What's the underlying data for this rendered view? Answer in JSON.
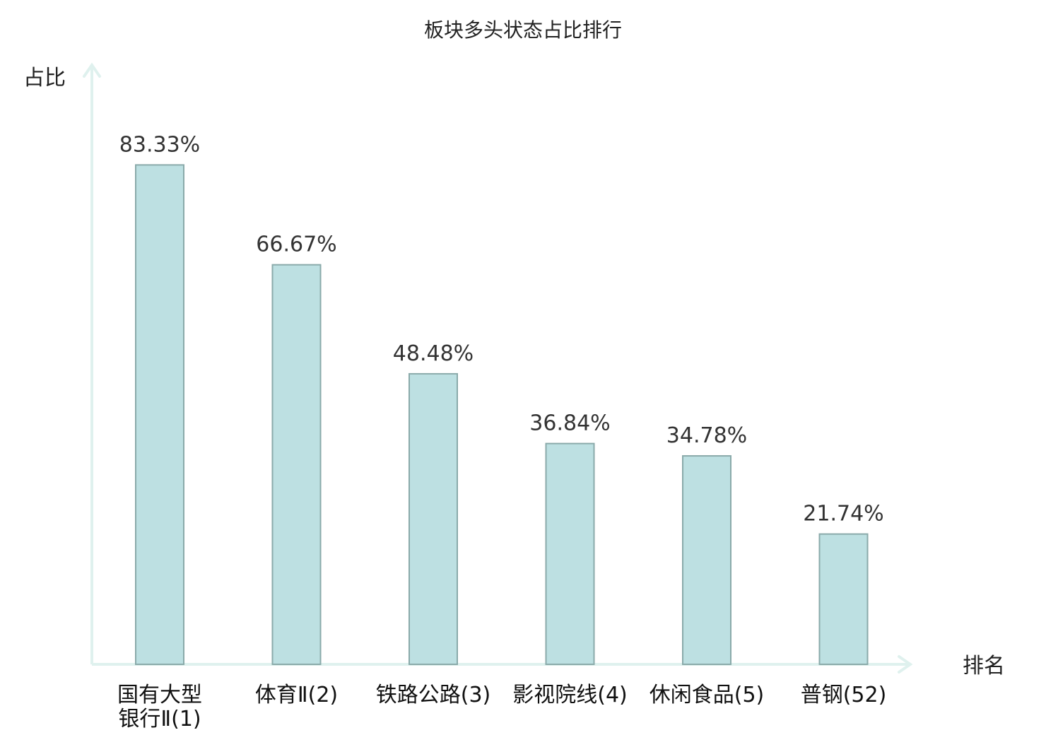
{
  "chart_data": {
    "type": "bar",
    "title": "板块多头状态占比排行",
    "ylabel": "占比",
    "xlabel": "排名",
    "categories": [
      [
        "国有大型",
        "银行Ⅱ(1)"
      ],
      [
        "体育Ⅱ(2)"
      ],
      [
        "铁路公路(3)"
      ],
      [
        "影视院线(4)"
      ],
      [
        "休闲食品(5)"
      ],
      [
        "普钢(52)"
      ]
    ],
    "values": [
      83.33,
      66.67,
      48.48,
      36.84,
      34.78,
      21.74
    ],
    "value_labels": [
      "83.33%",
      "66.67%",
      "48.48%",
      "36.84%",
      "34.78%",
      "21.74%"
    ],
    "highlight_index": 5,
    "ylim": [
      0,
      100
    ],
    "grid": false,
    "colors": {
      "bar_fill": "#bde0e2",
      "bar_stroke": "#8aaaaa",
      "axis": "#dff1ee",
      "highlight_text": "#e02020",
      "text": "#222222"
    }
  }
}
